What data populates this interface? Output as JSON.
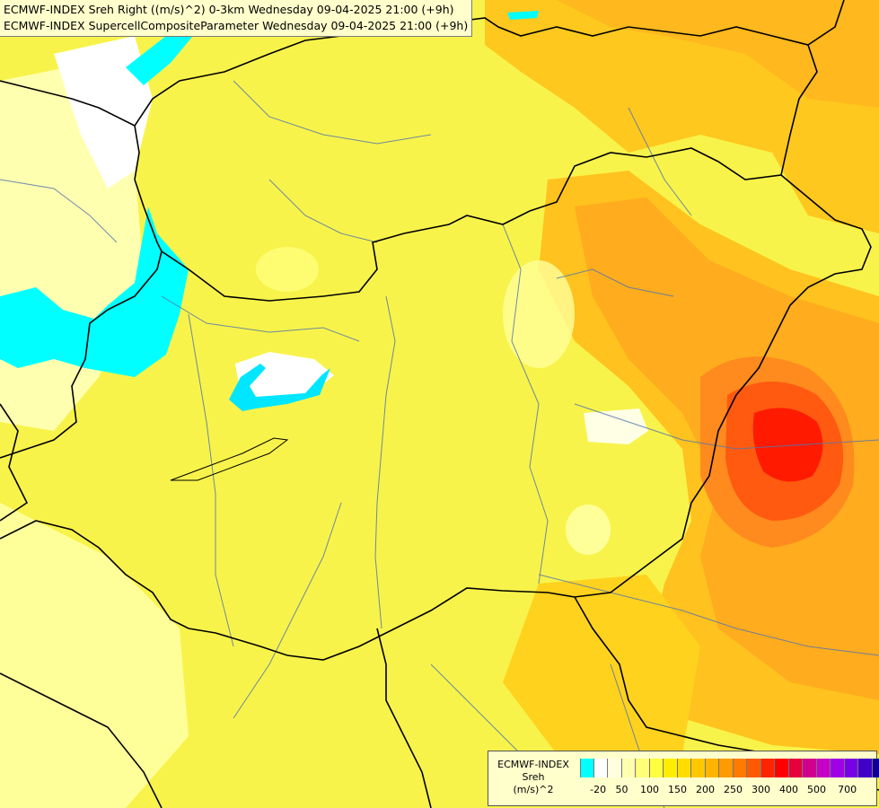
{
  "title": {
    "line1": "ECMWF-INDEX Sreh Right ((m/s)^2) 0-3km Wednesday 09-04-2025 21:00 (+9h)",
    "line2": "ECMWF-INDEX SupercellCompositeParameter Wednesday 09-04-2025 21:00 (+9h)"
  },
  "legend": {
    "model": "ECMWF-INDEX",
    "variable": "Sreh",
    "unit": "(m/s)^2",
    "colors": [
      "#00ffff",
      "#ffffff",
      "#ffffe0",
      "#ffffb0",
      "#ffff78",
      "#ffff40",
      "#ffee00",
      "#ffdd00",
      "#ffc800",
      "#ffb400",
      "#ff9a00",
      "#ff7a00",
      "#ff5a00",
      "#ff2400",
      "#ff0000",
      "#e6003c",
      "#d0008c",
      "#c800c8",
      "#a000e6",
      "#7800e6",
      "#4000c8",
      "#100096"
    ],
    "ticks": [
      "-20",
      "50",
      "100",
      "150",
      "200",
      "250",
      "300",
      "400",
      "500",
      "700"
    ]
  },
  "colors": {
    "background": "#f5f078",
    "border": "#000000",
    "river": "#5577aa"
  }
}
